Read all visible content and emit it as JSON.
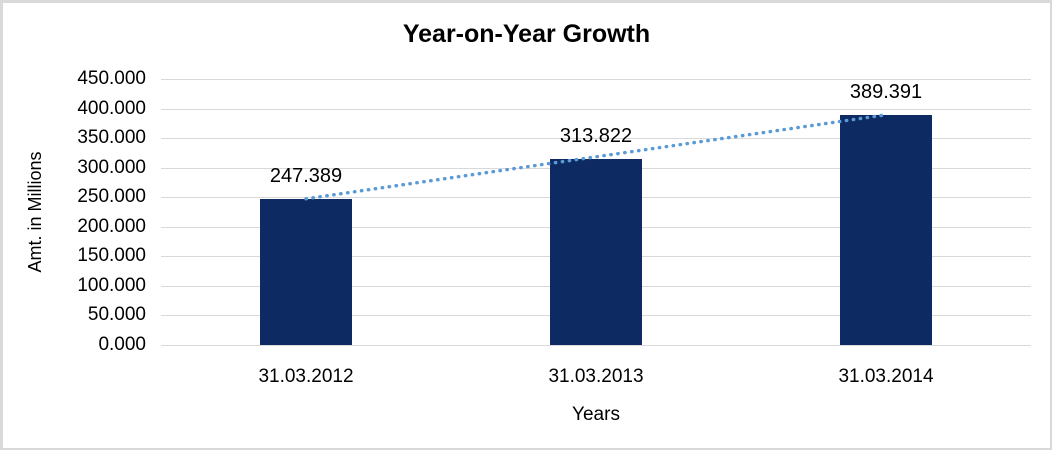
{
  "chart_data": {
    "type": "bar",
    "title": "Year-on-Year Growth",
    "xlabel": "Years",
    "ylabel": "Amt. in Millions",
    "categories": [
      "31.03.2012",
      "31.03.2013",
      "31.03.2014"
    ],
    "values": [
      247.389,
      313.822,
      389.391
    ],
    "value_labels": [
      "247.389",
      "313.822",
      "389.391"
    ],
    "ylim": [
      0,
      450
    ],
    "ytick_step": 50,
    "ytick_labels": [
      "0.000",
      "50.000",
      "100.000",
      "150.000",
      "200.000",
      "250.000",
      "300.000",
      "350.000",
      "400.000",
      "450.000"
    ],
    "grid": true,
    "legend": "none",
    "trendline": "linear-dotted",
    "colors": {
      "bar": "#0d2a63",
      "trendline": "#5b9bd5",
      "gridline": "#d9d9d9",
      "text": "#000000",
      "frame_border": "#d9d9d9",
      "background": "#ffffff"
    }
  }
}
